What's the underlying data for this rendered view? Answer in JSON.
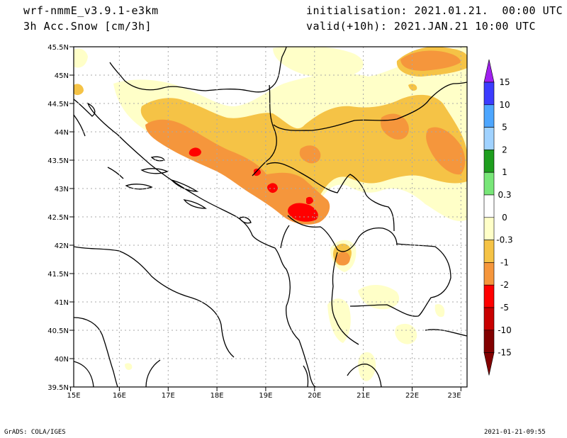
{
  "header": {
    "model": "wrf-nmmE_v3.9.1-e3km",
    "field": "3h Acc.Snow [cm/3h]",
    "init": "initialisation: 2021.01.21.  00:00 UTC",
    "valid": "valid(+10h): 2021.JAN.21 10:00 UTC"
  },
  "footer": {
    "credit": "GrADS: COLA/IGES",
    "timestamp": "2021-01-21-09:55"
  },
  "map": {
    "lon_labels": [
      "15E",
      "16E",
      "17E",
      "18E",
      "19E",
      "20E",
      "21E",
      "22E",
      "23E"
    ],
    "lat_labels": [
      "45.5N",
      "45N",
      "44.5N",
      "44N",
      "43.5N",
      "43N",
      "42.5N",
      "42N",
      "41.5N",
      "41N",
      "40.5N",
      "40N",
      "39.5N"
    ]
  },
  "colorbar": {
    "labels": [
      "15",
      "10",
      "5",
      "2",
      "1",
      "0.3",
      "0",
      "-0.3",
      "-1",
      "-2",
      "-5",
      "-10",
      "-15"
    ],
    "colors": [
      "#a020f0",
      "#3c3cff",
      "#4da6ff",
      "#a0d2ff",
      "#1e9e1e",
      "#78e678",
      "#ffffff",
      "#ffffc8",
      "#f5c346",
      "#f5963c",
      "#ff0000",
      "#c80000",
      "#820000"
    ],
    "top_arrow_color": "#a020f0",
    "bottom_arrow_color": "#820000"
  },
  "colors": {
    "light": "#ffffc8",
    "yellow": "#f5c346",
    "orange": "#f5963c",
    "red": "#ff0000"
  }
}
